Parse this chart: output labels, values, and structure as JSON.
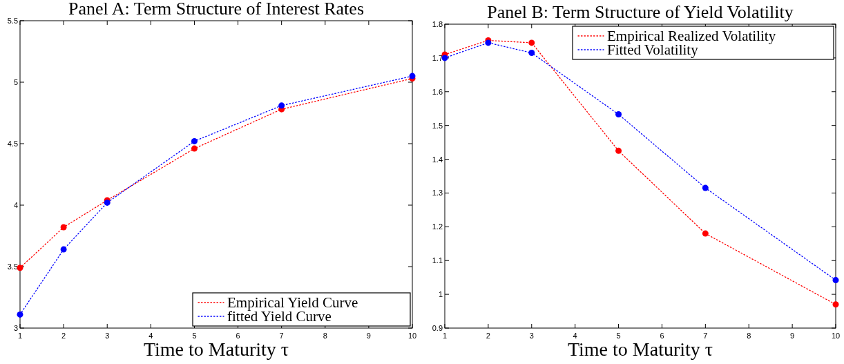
{
  "chart_data": [
    {
      "type": "line",
      "title": "Panel A: Term Structure of Interest Rates",
      "xlabel": "Time to Maturity τ",
      "x": [
        1,
        2,
        3,
        5,
        7,
        10
      ],
      "xlim": [
        1,
        10
      ],
      "xticks": [
        1,
        2,
        3,
        4,
        5,
        6,
        7,
        8,
        9,
        10
      ],
      "ylim": [
        3,
        5.5
      ],
      "yticks": [
        3,
        3.5,
        4,
        4.5,
        5,
        5.5
      ],
      "marker": "circle",
      "line_style": "dotted",
      "legend": "bottom right",
      "series": [
        {
          "name": "Empirical Yield Curve",
          "color": "#ff0000",
          "values": [
            3.49,
            3.82,
            4.04,
            4.46,
            4.78,
            5.03
          ]
        },
        {
          "name": "fitted Yield Curve",
          "color": "#0000ff",
          "values": [
            3.11,
            3.64,
            4.02,
            4.52,
            4.81,
            5.05
          ]
        }
      ]
    },
    {
      "type": "line",
      "title": "Panel B: Term Structure of Yield Volatility",
      "xlabel": "Time to Maturity τ",
      "x": [
        1,
        2,
        3,
        5,
        7,
        10
      ],
      "xlim": [
        1,
        10
      ],
      "xticks": [
        1,
        2,
        3,
        4,
        5,
        6,
        7,
        8,
        9,
        10
      ],
      "ylim": [
        0.9,
        1.8
      ],
      "yticks": [
        0.9,
        1,
        1.1,
        1.2,
        1.3,
        1.4,
        1.5,
        1.6,
        1.7,
        1.8
      ],
      "marker": "circle",
      "line_style": "dotted",
      "legend": "top right",
      "series": [
        {
          "name": "Empirical Realized Volatility",
          "color": "#ff0000",
          "values": [
            1.71,
            1.752,
            1.745,
            1.425,
            1.18,
            0.97
          ]
        },
        {
          "name": "Fitted Volatility",
          "color": "#0000ff",
          "values": [
            1.7,
            1.745,
            1.715,
            1.533,
            1.315,
            1.042
          ]
        }
      ]
    }
  ]
}
